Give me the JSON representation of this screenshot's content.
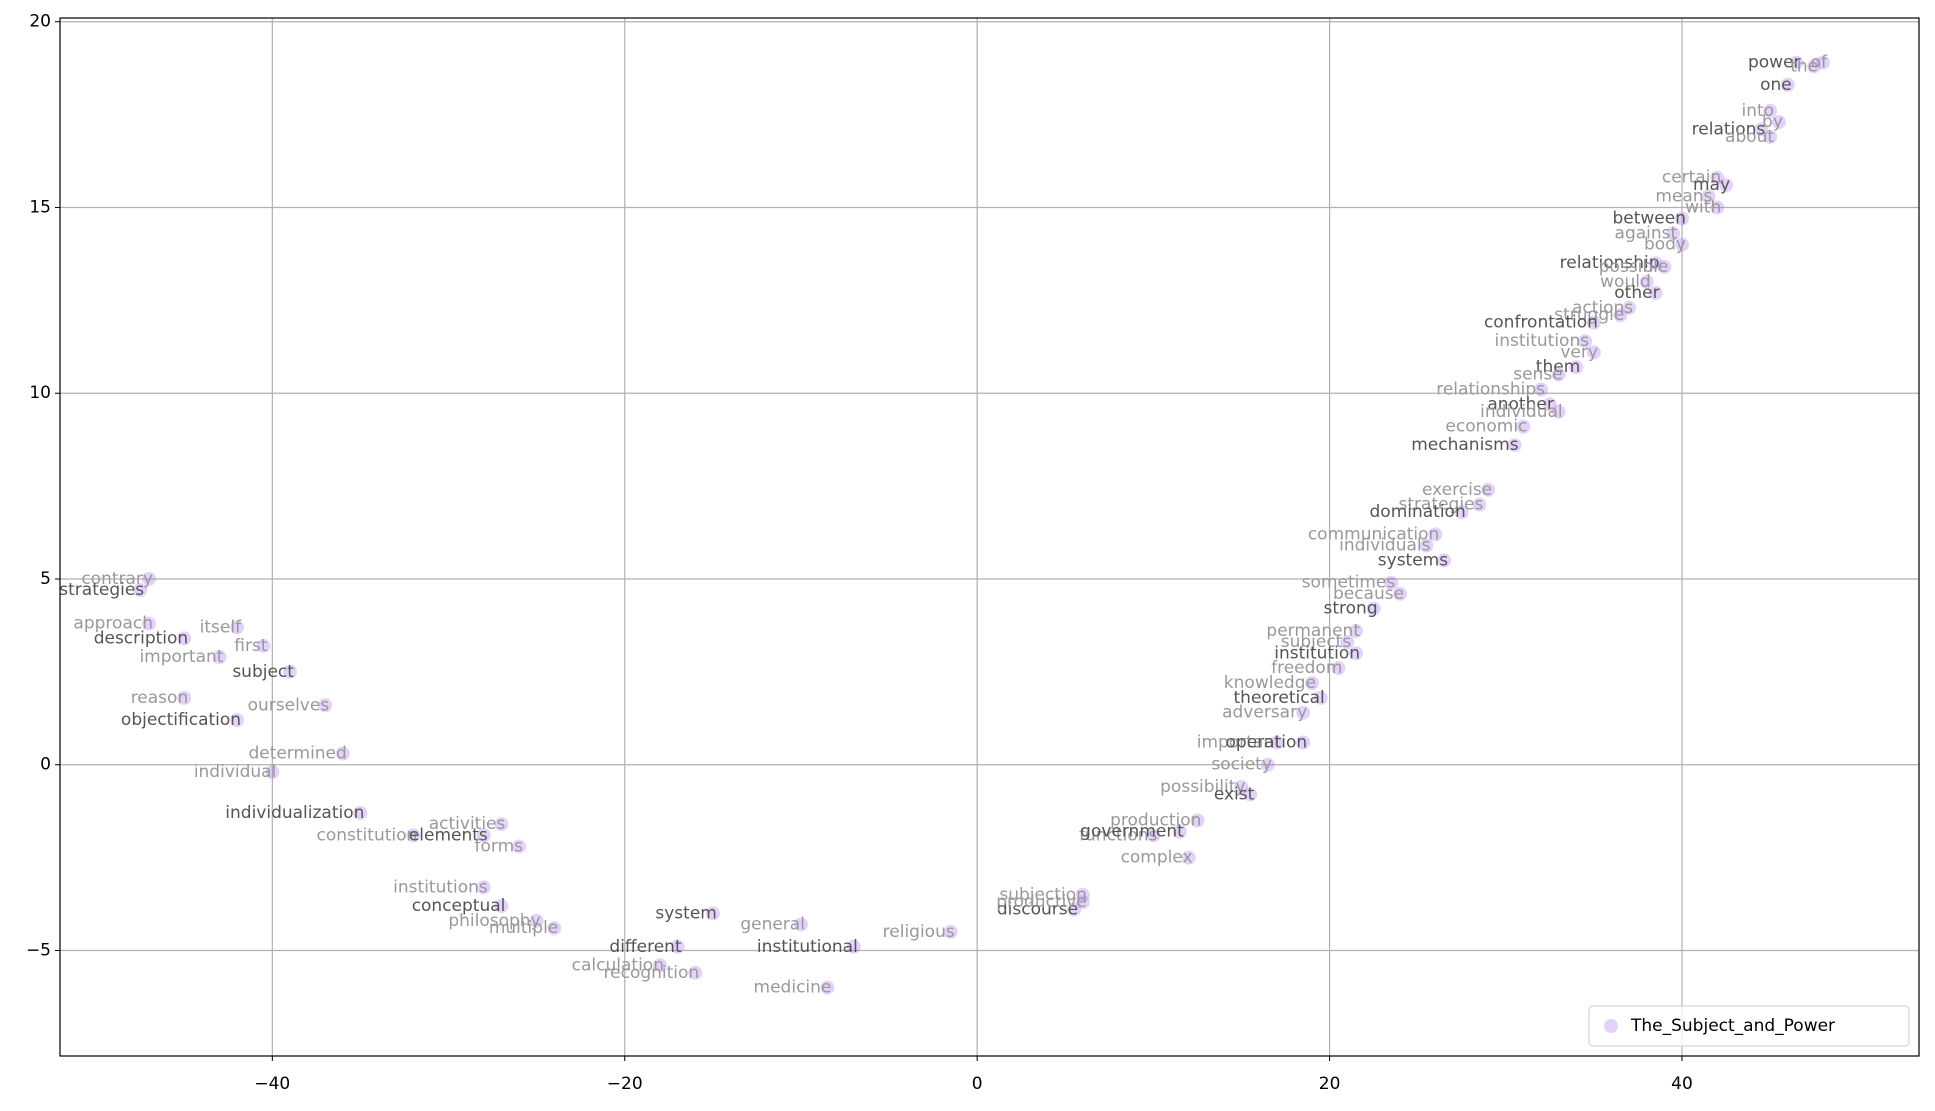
{
  "chart_data": {
    "type": "scatter",
    "xlim": [
      -52.05,
      53.45
    ],
    "ylim": [
      -7.84,
      20.1
    ],
    "xticks": [
      {
        "value": -40,
        "label": "−40"
      },
      {
        "value": -20,
        "label": "−20"
      },
      0,
      20,
      40
    ],
    "yticks": [
      {
        "value": -5,
        "label": "−5"
      },
      0,
      5,
      10,
      15,
      20
    ],
    "grid": true,
    "legend": "lower right",
    "series": [
      {
        "name": "The_Subject_and_Power",
        "color": "#a66bf2",
        "x": [
          46.5,
          48,
          47.5,
          46,
          45,
          45.5,
          44.5,
          45,
          42,
          42.5,
          41.5,
          42,
          40,
          39.5,
          40,
          38.5,
          39,
          38,
          38.5,
          37,
          36.5,
          35,
          34.5,
          35,
          34,
          33,
          32,
          32.5,
          33,
          31,
          30.5,
          29,
          28.5,
          27.5,
          26,
          25.5,
          26.5,
          23.5,
          24,
          22.5,
          21.5,
          21,
          21.5,
          20.5,
          19,
          19.5,
          18.5,
          17,
          18.5,
          16.5,
          15,
          15.5,
          12.5,
          10,
          11.5,
          12,
          6,
          5.5,
          6,
          -1.5,
          -7,
          -8.5,
          -47,
          -47.5,
          -47,
          -42,
          -45,
          -40.5,
          -43,
          -39,
          -45,
          -37,
          -42,
          -36,
          -40,
          -35,
          -27,
          -32,
          -28,
          -26,
          -28,
          -27,
          -25,
          -24,
          -17,
          -18,
          -16,
          -15,
          -10
        ],
        "values": [
          18.9,
          18.9,
          18.8,
          18.3,
          17.6,
          17.3,
          17.1,
          16.9,
          15.8,
          15.6,
          15.3,
          15.0,
          14.7,
          14.3,
          14.0,
          13.5,
          13.4,
          13.0,
          12.7,
          12.3,
          12.1,
          11.9,
          11.4,
          11.1,
          10.7,
          10.5,
          10.1,
          9.7,
          9.5,
          9.1,
          8.6,
          7.4,
          7.0,
          6.8,
          6.2,
          5.9,
          5.5,
          4.9,
          4.6,
          4.2,
          3.6,
          3.3,
          3.0,
          2.6,
          2.2,
          1.8,
          1.4,
          0.6,
          0.6,
          0.0,
          -0.6,
          -0.8,
          -1.5,
          -1.9,
          -1.8,
          -2.5,
          -3.5,
          -3.9,
          -3.7,
          -4.5,
          -4.9,
          -6.0,
          5.0,
          4.7,
          3.8,
          3.7,
          3.4,
          3.2,
          2.9,
          2.5,
          1.8,
          1.6,
          1.2,
          0.3,
          -0.2,
          -1.3,
          -1.6,
          -1.9,
          -1.9,
          -2.2,
          -3.3,
          -3.8,
          -4.2,
          -4.4,
          -4.9,
          -5.4,
          -5.6,
          -4.0,
          -4.3
        ],
        "labels": [
          "power",
          "of",
          "the",
          "one",
          "into",
          "by",
          "relations",
          "about",
          "certain",
          "may",
          "means",
          "with",
          "between",
          "against",
          "body",
          "relationship",
          "possible",
          "would",
          "other",
          "actions",
          "struggle",
          "confrontation",
          "institutions",
          "very",
          "them",
          "sense",
          "relationships",
          "another",
          "individual",
          "economic",
          "mechanisms",
          "exercise",
          "strategies",
          "domination",
          "communication",
          "individuals",
          "systems",
          "sometimes",
          "because",
          "strong",
          "permanent",
          "subjects",
          "institution",
          "freedom",
          "knowledge",
          "theoretical",
          "adversary",
          "important",
          "operation",
          "society",
          "possibility",
          "exist",
          "production",
          "functions",
          "government",
          "complex",
          "subjection",
          "discourse",
          "productive",
          "religious",
          "institutional",
          "medicine",
          "contrary",
          "strategies",
          "approach",
          "itself",
          "description",
          "first",
          "important",
          "subject",
          "reason",
          "ourselves",
          "objectification",
          "determined",
          "individual",
          "individualization",
          "activities",
          "constitution",
          "elements",
          "forms",
          "institutions",
          "conceptual",
          "philosophy",
          "multiple",
          "different",
          "calculation",
          "recognition",
          "system",
          "general"
        ]
      }
    ]
  }
}
